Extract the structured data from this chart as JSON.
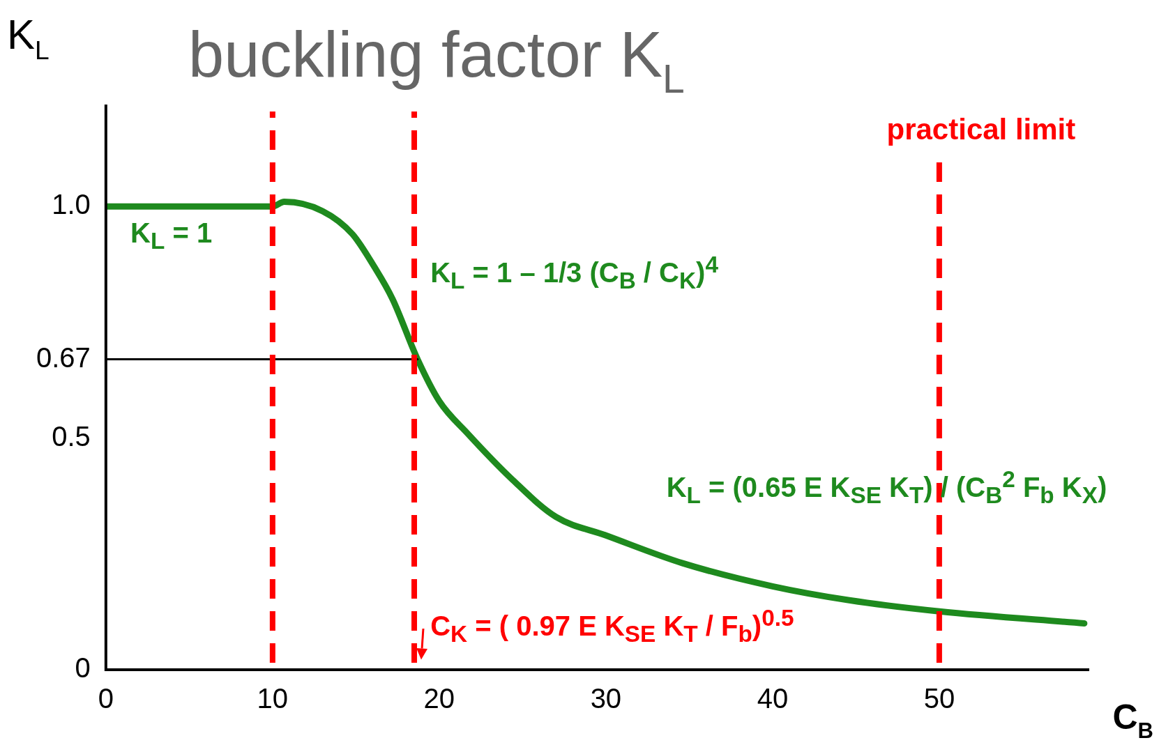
{
  "chart_data": {
    "type": "line",
    "title": "buckling factor K$_{L}$",
    "xlabel": "C$_{B}$",
    "ylabel": "K$_{L}$",
    "xlim": [
      0,
      59
    ],
    "ylim": [
      0,
      1.22
    ],
    "xticks": [
      0,
      10,
      20,
      30,
      40,
      50
    ],
    "yticks": [
      0,
      0.5,
      0.67,
      {
        "value": 1,
        "label": "1.0"
      }
    ],
    "grid": false,
    "legend": false,
    "marker": "none",
    "line_style": "solid",
    "series": [
      {
        "color": "#1e8a1e",
        "x": [
          0,
          10,
          10.7,
          13,
          14.8,
          16.1,
          17.2,
          18.7,
          20,
          21.7,
          24.4,
          27,
          30,
          34.6,
          40,
          44.6,
          50,
          58.7
        ],
        "values": [
          1,
          1,
          1.01,
          0.99,
          0.94,
          0.87,
          0.8,
          0.67,
          0.58,
          0.51,
          0.41,
          0.33,
          0.29,
          0.23,
          0.18,
          0.15,
          0.126,
          0.1
        ]
      },
      {
        "color": "#000000",
        "x": [
          0,
          18.7
        ],
        "values": [
          0.67,
          0.67
        ]
      }
    ],
    "ref_lines": [
      {
        "axis": "x",
        "value": 10,
        "color": "#ff0000",
        "line_style": "dashed"
      },
      {
        "axis": "x",
        "value": 18.5,
        "color": "#ff0000",
        "line_style": "dashed"
      },
      {
        "axis": "x",
        "value": 50,
        "label": "practical limit",
        "color": "#ff0000",
        "line_style": "dashed"
      }
    ],
    "annotations": [
      "K$_{L}$ = 1",
      "K$_{L}$ = 1 – 1/3 (C$_{B}$ / C$_{K}$)$^{4}$",
      "K$_{L}$ = (0.65 E K$_{SE}$ K$_{T}$) / (C$_{B}$$^{2}$ F$_{b}$ K$_{X}$)",
      "C$_{K}$ = ( 0.97 E K$_{SE}$ K$_{T}$ / F$_{b}$)$^{0.5}$"
    ]
  }
}
